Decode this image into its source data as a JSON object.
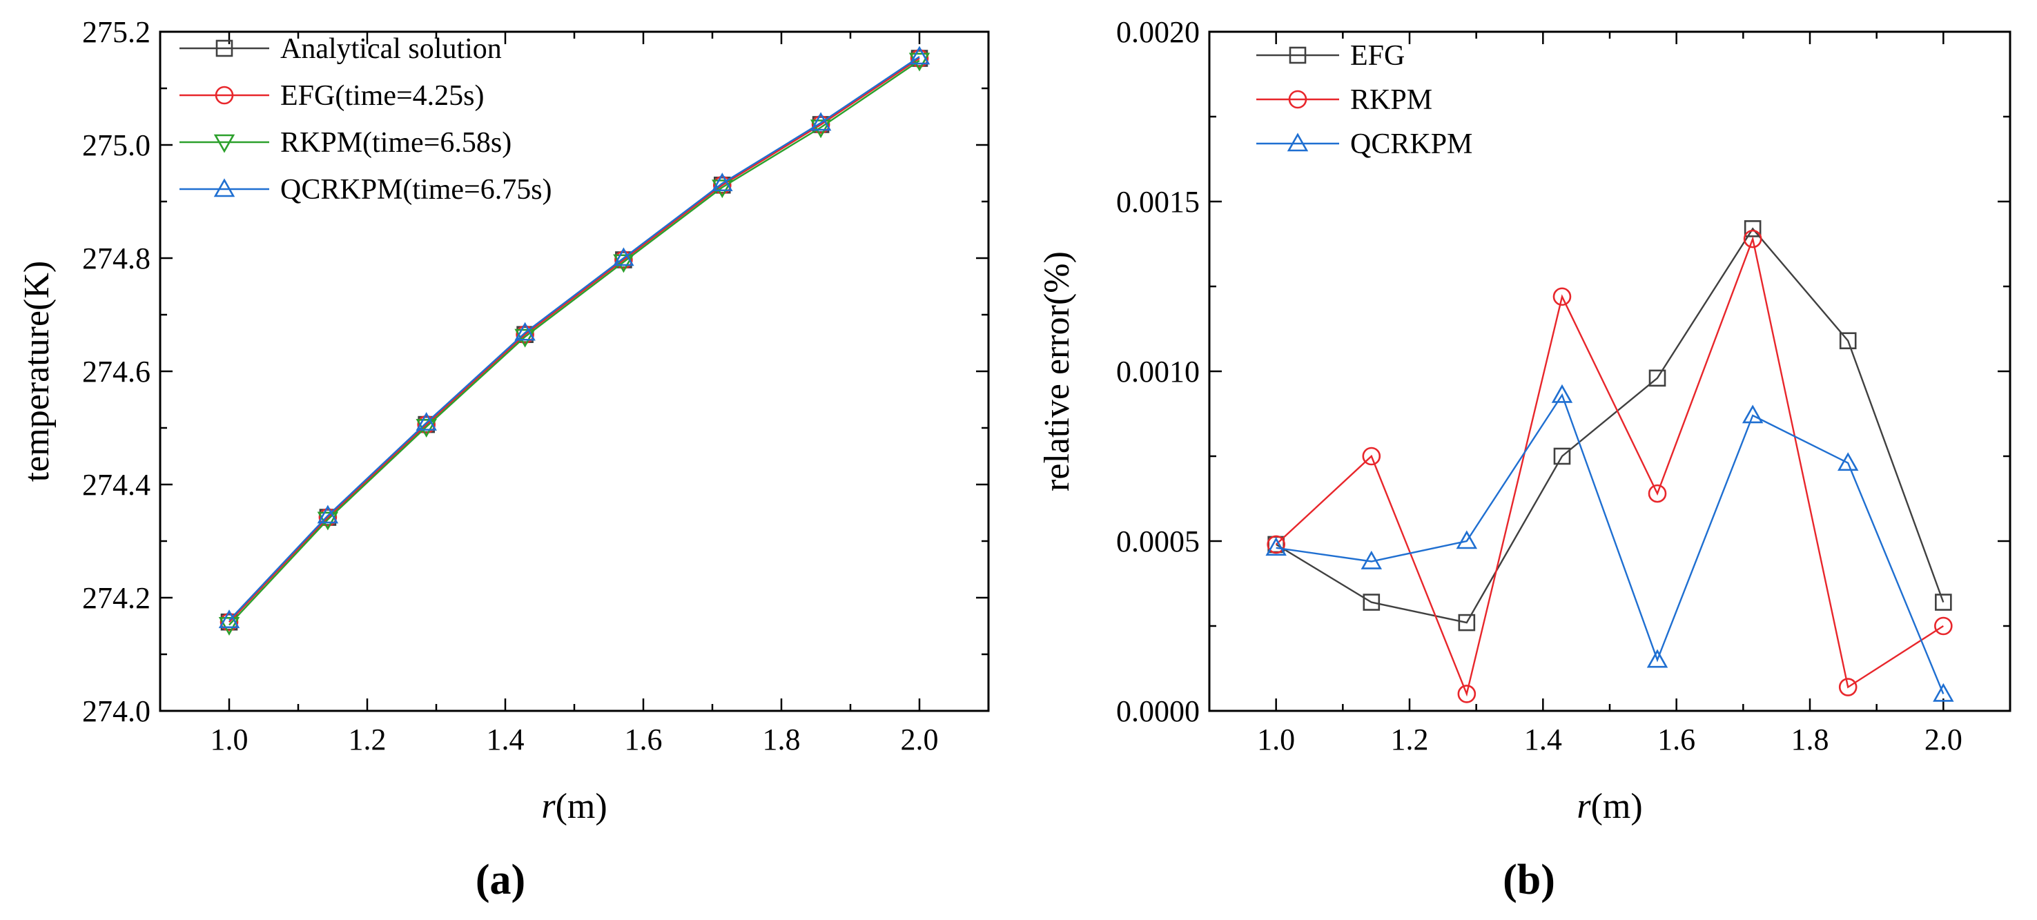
{
  "chart_data": [
    {
      "type": "line",
      "panel_label": "(a)",
      "xlabel_var": "r",
      "xlabel_unit": "(m)",
      "ylabel": "temperature(K)",
      "xlim": [
        0.9,
        2.1
      ],
      "ylim": [
        274.0,
        275.2
      ],
      "xticks": [
        1.0,
        1.2,
        1.4,
        1.6,
        1.8,
        2.0
      ],
      "xtick_labels": [
        "1.0",
        "1.2",
        "1.4",
        "1.6",
        "1.8",
        "2.0"
      ],
      "yticks": [
        274.0,
        274.2,
        274.4,
        274.6,
        274.8,
        275.0,
        275.2
      ],
      "ytick_labels": [
        "274.0",
        "274.2",
        "274.4",
        "274.6",
        "274.8",
        "275.0",
        "275.2"
      ],
      "legend_position": "top-left",
      "x": [
        1.0,
        1.1429,
        1.2857,
        1.4286,
        1.5714,
        1.7143,
        1.8571,
        2.0
      ],
      "series": [
        {
          "name": "Analytical solution",
          "color": "#404040",
          "marker": "square",
          "values": [
            274.157,
            274.342,
            274.506,
            274.665,
            274.797,
            274.929,
            275.036,
            275.153
          ]
        },
        {
          "name": "EFG(time=4.25s)",
          "color": "#e8262b",
          "marker": "circle",
          "values": [
            274.157,
            274.342,
            274.506,
            274.665,
            274.797,
            274.929,
            275.036,
            275.153
          ]
        },
        {
          "name": "RKPM(time=6.58s)",
          "color": "#2ca02c",
          "marker": "triangle-down",
          "values": [
            274.152,
            274.338,
            274.502,
            274.661,
            274.793,
            274.925,
            275.031,
            275.149
          ]
        },
        {
          "name": "QCRKPM(time=6.75s)",
          "color": "#1f6fd1",
          "marker": "triangle-up",
          "values": [
            274.16,
            274.345,
            274.509,
            274.668,
            274.8,
            274.932,
            275.039,
            275.156
          ]
        }
      ]
    },
    {
      "type": "line",
      "panel_label": "(b)",
      "xlabel_var": "r",
      "xlabel_unit": "(m)",
      "ylabel": "relative error(%)",
      "xlim": [
        0.9,
        2.1
      ],
      "ylim": [
        0.0,
        0.002
      ],
      "xticks": [
        1.0,
        1.2,
        1.4,
        1.6,
        1.8,
        2.0
      ],
      "xtick_labels": [
        "1.0",
        "1.2",
        "1.4",
        "1.6",
        "1.8",
        "2.0"
      ],
      "yticks": [
        0.0,
        0.0005,
        0.001,
        0.0015,
        0.002
      ],
      "ytick_labels": [
        "0.0000",
        "0.0005",
        "0.0010",
        "0.0015",
        "0.0020"
      ],
      "legend_position": "top-left",
      "x": [
        1.0,
        1.1429,
        1.2857,
        1.4286,
        1.5714,
        1.7143,
        1.8571,
        2.0
      ],
      "series": [
        {
          "name": "EFG",
          "color": "#404040",
          "marker": "square",
          "values": [
            0.00049,
            0.00032,
            0.00026,
            0.00075,
            0.00098,
            0.00142,
            0.00109,
            0.00032
          ]
        },
        {
          "name": "RKPM",
          "color": "#e8262b",
          "marker": "circle",
          "values": [
            0.00049,
            0.00075,
            5e-05,
            0.00122,
            0.00064,
            0.00139,
            7e-05,
            0.00025
          ]
        },
        {
          "name": "QCRKPM",
          "color": "#1f6fd1",
          "marker": "triangle-up",
          "values": [
            0.00048,
            0.00044,
            0.0005,
            0.00093,
            0.00015,
            0.00087,
            0.00073,
            5e-05
          ]
        }
      ]
    }
  ]
}
